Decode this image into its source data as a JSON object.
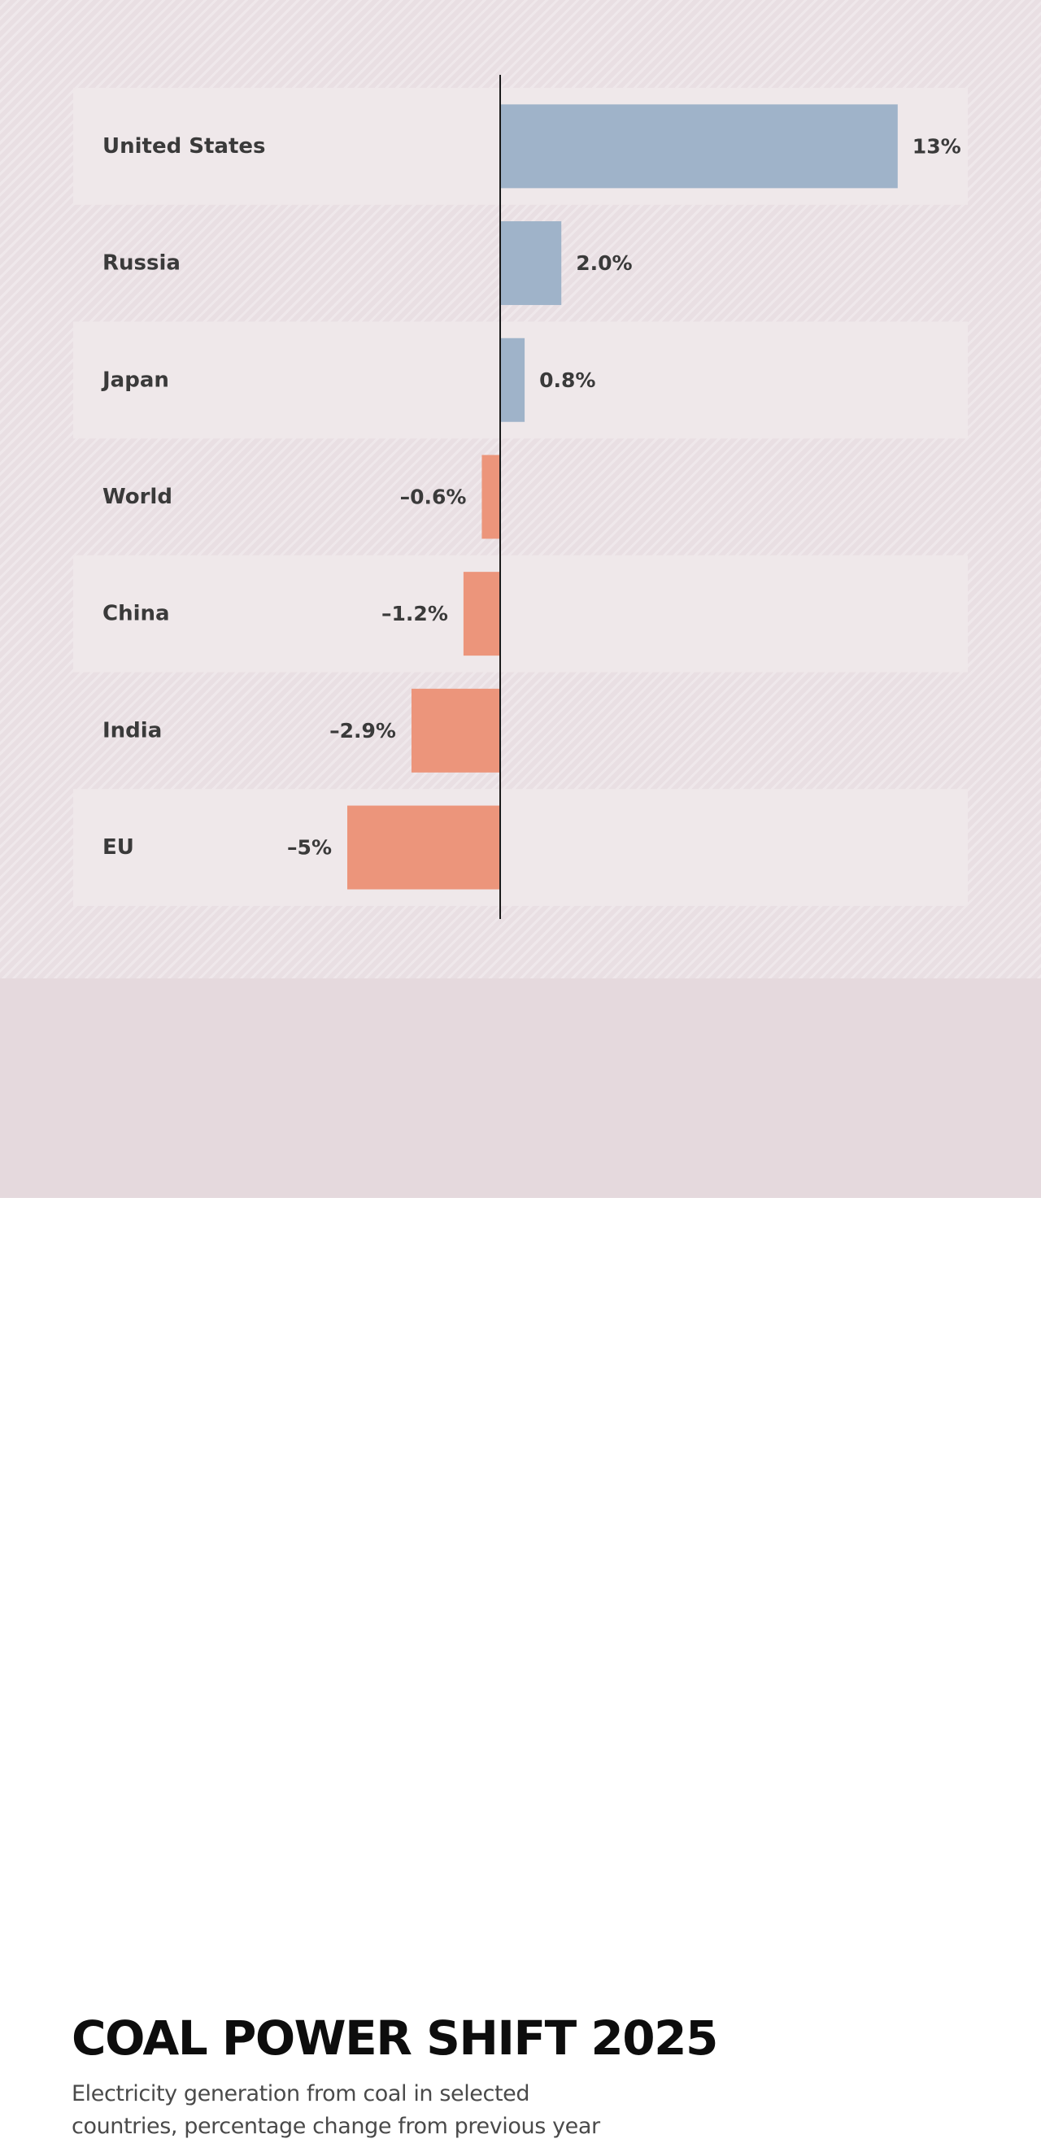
{
  "chart_data": {
    "type": "bar",
    "orientation": "horizontal",
    "title": "COAL POWER SHIFT 2025",
    "subtitle": "Electricity generation from coal in selected countries, percentage change from previous year",
    "categories": [
      "United States",
      "Russia",
      "Japan",
      "World",
      "China",
      "India",
      "EU"
    ],
    "values": [
      13,
      2.0,
      0.8,
      -0.6,
      -1.2,
      -2.9,
      -5
    ],
    "value_labels": [
      "13%",
      "2.0%",
      "0.8%",
      "–0.6%",
      "–1.2%",
      "–2.9%",
      "–5%"
    ],
    "xlim": [
      -14,
      15
    ],
    "zero_line": true,
    "grid": false,
    "legend": "none",
    "colors": {
      "positive": "#9fb3c9",
      "negative": "#ec957b",
      "axis": "#1a1a1a",
      "label": "#3a3a3a",
      "band": "#efe8ea"
    }
  }
}
